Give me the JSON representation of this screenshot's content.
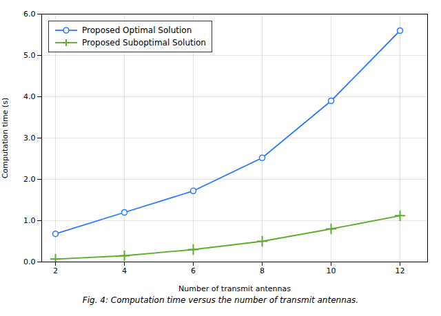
{
  "chart_data": {
    "type": "line",
    "caption": "Fig. 4:  Computation time versus the number of transmit antennas.",
    "xlabel": "Number of transmit antennas",
    "ylabel": "Computation time (s)",
    "x": [
      2,
      4,
      6,
      8,
      10,
      12
    ],
    "series": [
      {
        "name": "Proposed Optimal Solution",
        "color": "#2979FF",
        "marker": "circle",
        "values": [
          0.68,
          1.2,
          1.72,
          2.52,
          3.9,
          5.6
        ]
      },
      {
        "name": "Proposed Suboptimal Solution",
        "color": "#5BAD2A",
        "marker": "plus",
        "values": [
          0.07,
          0.15,
          0.3,
          0.5,
          0.8,
          1.12
        ]
      }
    ],
    "xlim": [
      1.6,
      12.8
    ],
    "ylim": [
      0,
      6
    ],
    "xticks": [
      2,
      4,
      6,
      8,
      10,
      12
    ],
    "yticks": [
      0,
      1,
      2,
      3,
      4,
      5,
      6
    ],
    "grid": true,
    "legend": "upper left"
  }
}
